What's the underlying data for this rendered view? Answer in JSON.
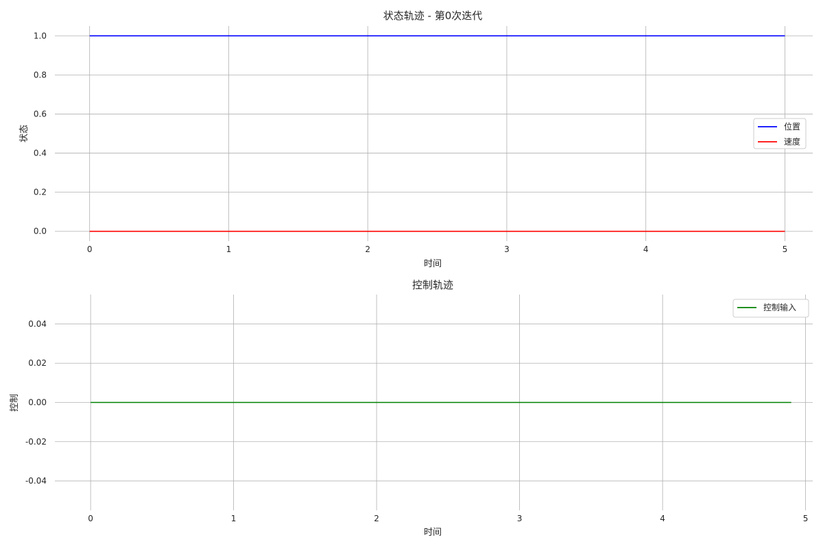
{
  "chart_data": [
    {
      "type": "line",
      "title": "状态轨迹 - 第0次迭代",
      "xlabel": "时间",
      "ylabel": "状态",
      "xlim": [
        -0.25,
        5.2
      ],
      "ylim": [
        -0.05,
        1.05
      ],
      "xticks": [
        0,
        1,
        2,
        3,
        4,
        5
      ],
      "yticks": [
        0.0,
        0.2,
        0.4,
        0.6,
        0.8,
        1.0
      ],
      "ytick_labels": [
        "0.0",
        "0.2",
        "0.4",
        "0.6",
        "0.8",
        "1.0"
      ],
      "grid": true,
      "legend_position": "center-right",
      "x": [
        0,
        5
      ],
      "series": [
        {
          "name": "位置",
          "color": "#0000ff",
          "values": [
            1.0,
            1.0
          ]
        },
        {
          "name": "速度",
          "color": "#ff0000",
          "values": [
            0.0,
            0.0
          ]
        }
      ]
    },
    {
      "type": "line",
      "title": "控制轨迹",
      "xlabel": "时间",
      "ylabel": "控制",
      "xlim": [
        -0.25,
        5.05
      ],
      "ylim": [
        -0.055,
        0.055
      ],
      "xticks": [
        0,
        1,
        2,
        3,
        4,
        5
      ],
      "yticks": [
        -0.04,
        -0.02,
        0.0,
        0.02,
        0.04
      ],
      "ytick_labels": [
        "-0.04",
        "-0.02",
        "0.00",
        "0.02",
        "0.04"
      ],
      "grid": true,
      "legend_position": "top-right",
      "x": [
        0,
        4.9
      ],
      "series": [
        {
          "name": "控制输入",
          "color": "#008000",
          "values": [
            0.0,
            0.0
          ]
        }
      ]
    }
  ]
}
